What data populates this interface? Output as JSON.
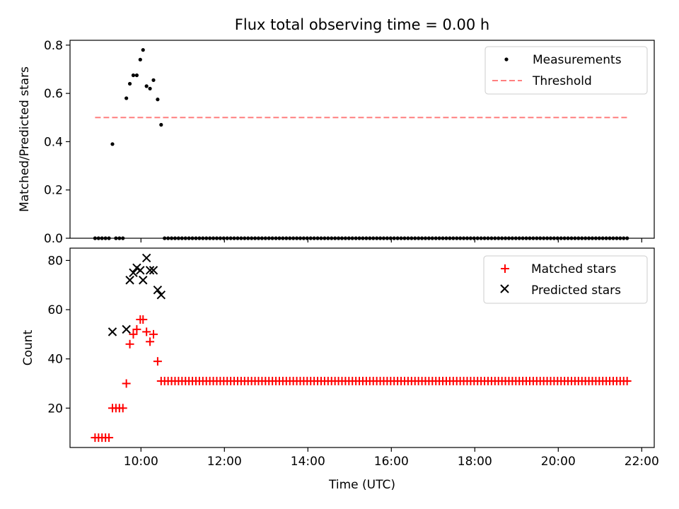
{
  "chart_data": [
    {
      "type": "scatter",
      "title": "Flux total observing time = 0.00 h",
      "xlabel": "",
      "ylabel": "Matched/Predicted stars",
      "xlim": [
        "08:18",
        "22:18"
      ],
      "ylim": [
        0,
        0.82
      ],
      "yticks": [
        0.0,
        0.2,
        0.4,
        0.6,
        0.8
      ],
      "ytick_labels": [
        "0.0",
        "0.2",
        "0.4",
        "0.6",
        "0.8"
      ],
      "legend_position": "top-right",
      "series": [
        {
          "name": "Measurements",
          "marker": "dot",
          "color": "#000000",
          "points": [
            [
              "08:54",
              0.0
            ],
            [
              "08:59",
              0.0
            ],
            [
              "09:04",
              0.0
            ],
            [
              "09:09",
              0.0
            ],
            [
              "09:14",
              0.0
            ],
            [
              "09:19",
              0.39
            ],
            [
              "09:24",
              0.0
            ],
            [
              "09:29",
              0.0
            ],
            [
              "09:34",
              0.0
            ],
            [
              "09:39",
              0.58
            ],
            [
              "09:44",
              0.64
            ],
            [
              "09:49",
              0.675
            ],
            [
              "09:54",
              0.675
            ],
            [
              "09:59",
              0.74
            ],
            [
              "10:03",
              0.78
            ],
            [
              "10:08",
              0.63
            ],
            [
              "10:13",
              0.62
            ],
            [
              "10:18",
              0.655
            ],
            [
              "10:24",
              0.575
            ],
            [
              "10:29",
              0.47
            ]
          ],
          "baseline_zero_from": "10:34",
          "baseline_zero_to": "21:42",
          "baseline_step_minutes": 5
        },
        {
          "name": "Threshold",
          "marker": "dashed-line",
          "color": "#ff7f7f",
          "points": [
            [
              "08:54",
              0.5
            ],
            [
              "21:42",
              0.5
            ]
          ]
        }
      ]
    },
    {
      "type": "scatter",
      "title": "",
      "xlabel": "Time (UTC)",
      "ylabel": "Count",
      "xlim": [
        "08:18",
        "22:18"
      ],
      "ylim": [
        4,
        85
      ],
      "xticks": [
        "10:00",
        "12:00",
        "14:00",
        "16:00",
        "18:00",
        "20:00",
        "22:00"
      ],
      "yticks": [
        20,
        40,
        60,
        80
      ],
      "ytick_labels": [
        "20",
        "40",
        "60",
        "80"
      ],
      "legend_position": "top-right",
      "series": [
        {
          "name": "Matched stars",
          "marker": "plus",
          "color": "#ff0000",
          "points": [
            [
              "08:54",
              8
            ],
            [
              "08:59",
              8
            ],
            [
              "09:04",
              8
            ],
            [
              "09:09",
              8
            ],
            [
              "09:14",
              8
            ],
            [
              "09:19",
              20
            ],
            [
              "09:24",
              20
            ],
            [
              "09:29",
              20
            ],
            [
              "09:34",
              20
            ],
            [
              "09:39",
              30
            ],
            [
              "09:44",
              46
            ],
            [
              "09:49",
              50
            ],
            [
              "09:54",
              52
            ],
            [
              "09:59",
              56
            ],
            [
              "10:03",
              56
            ],
            [
              "10:08",
              51
            ],
            [
              "10:13",
              47
            ],
            [
              "10:18",
              50
            ],
            [
              "10:24",
              39
            ],
            [
              "10:29",
              31
            ]
          ],
          "baseline_value": 31,
          "baseline_from": "10:34",
          "baseline_to": "21:42",
          "baseline_step_minutes": 5
        },
        {
          "name": "Predicted stars",
          "marker": "x",
          "color": "#000000",
          "points": [
            [
              "09:19",
              51
            ],
            [
              "09:39",
              52
            ],
            [
              "09:44",
              72
            ],
            [
              "09:49",
              75
            ],
            [
              "09:54",
              77
            ],
            [
              "09:59",
              76
            ],
            [
              "10:03",
              72
            ],
            [
              "10:08",
              81
            ],
            [
              "10:13",
              76
            ],
            [
              "10:18",
              76
            ],
            [
              "10:24",
              68
            ],
            [
              "10:29",
              66
            ]
          ]
        }
      ]
    }
  ]
}
